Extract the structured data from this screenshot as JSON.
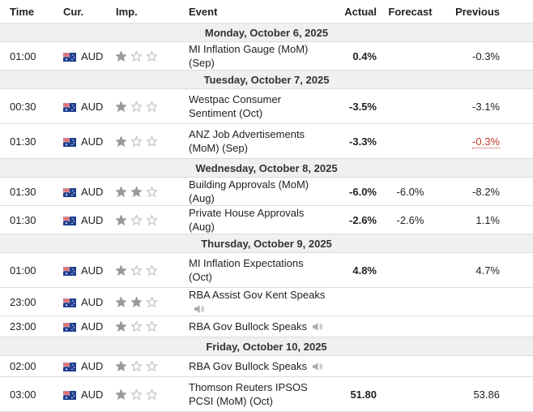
{
  "header": {
    "columns": [
      "Time",
      "Cur.",
      "Imp.",
      "Event",
      "Actual",
      "Forecast",
      "Previous"
    ]
  },
  "days": [
    {
      "date": "Monday, October 6, 2025",
      "events": [
        {
          "time": "01:00",
          "currency": "AUD",
          "importance": 1,
          "event": "MI Inflation Gauge (MoM) (Sep)",
          "actual": "0.4%",
          "previous": "-0.3%"
        }
      ]
    },
    {
      "date": "Tuesday, October 7, 2025",
      "events": [
        {
          "time": "00:30",
          "currency": "AUD",
          "importance": 1,
          "event": "Westpac Consumer Sentiment (Oct)",
          "actual": "-3.5%",
          "previous": "-3.1%"
        },
        {
          "time": "01:30",
          "currency": "AUD",
          "importance": 1,
          "event": "ANZ Job Advertisements (MoM) (Sep)",
          "actual": "-3.3%",
          "previous": "-0.3%",
          "previous_revised": true
        }
      ]
    },
    {
      "date": "Wednesday, October 8, 2025",
      "events": [
        {
          "time": "01:30",
          "currency": "AUD",
          "importance": 2,
          "event": "Building Approvals (MoM) (Aug)",
          "actual": "-6.0%",
          "forecast": "-6.0%",
          "previous": "-8.2%"
        },
        {
          "time": "01:30",
          "currency": "AUD",
          "importance": 1,
          "event": "Private House Approvals (Aug)",
          "actual": "-2.6%",
          "forecast": "-2.6%",
          "previous": "1.1%"
        }
      ]
    },
    {
      "date": "Thursday, October 9, 2025",
      "events": [
        {
          "time": "01:00",
          "currency": "AUD",
          "importance": 1,
          "event": "MI Inflation Expectations (Oct)",
          "actual": "4.8%",
          "previous": "4.7%"
        },
        {
          "time": "23:00",
          "currency": "AUD",
          "importance": 2,
          "event": "RBA Assist Gov Kent Speaks",
          "speech": true
        },
        {
          "time": "23:00",
          "currency": "AUD",
          "importance": 1,
          "event": "RBA Gov Bullock Speaks",
          "speech": true
        }
      ]
    },
    {
      "date": "Friday, October 10, 2025",
      "events": [
        {
          "time": "02:00",
          "currency": "AUD",
          "importance": 1,
          "event": "RBA Gov Bullock Speaks",
          "speech": true
        },
        {
          "time": "03:00",
          "currency": "AUD",
          "importance": 1,
          "event": "Thomson Reuters IPSOS PCSI (MoM) (Oct)",
          "actual": "51.80",
          "previous": "53.86"
        }
      ]
    }
  ]
}
